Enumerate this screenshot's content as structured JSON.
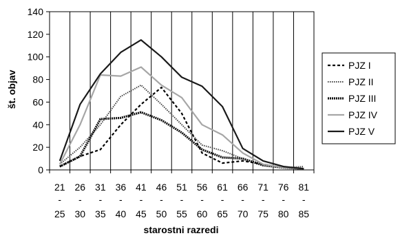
{
  "chart_data": {
    "type": "line",
    "xlabel": "starostni razredi",
    "ylabel": "št. objav",
    "ylim": [
      0,
      140
    ],
    "yticks": [
      "0",
      "20",
      "40",
      "60",
      "80",
      "100",
      "120",
      "140"
    ],
    "categories": [
      {
        "top": "21",
        "mid": "-",
        "bottom": "25"
      },
      {
        "top": "26",
        "mid": "-",
        "bottom": "30"
      },
      {
        "top": "31",
        "mid": "-",
        "bottom": "35"
      },
      {
        "top": "36",
        "mid": "-",
        "bottom": "40"
      },
      {
        "top": "41",
        "mid": "-",
        "bottom": "45"
      },
      {
        "top": "46",
        "mid": "-",
        "bottom": "50"
      },
      {
        "top": "51",
        "mid": "-",
        "bottom": "55"
      },
      {
        "top": "56",
        "mid": "-",
        "bottom": "60"
      },
      {
        "top": "61",
        "mid": "-",
        "bottom": "65"
      },
      {
        "top": "66",
        "mid": "-",
        "bottom": "70"
      },
      {
        "top": "71",
        "mid": "-",
        "bottom": "75"
      },
      {
        "top": "76",
        "mid": "-",
        "bottom": "80"
      },
      {
        "top": "81",
        "mid": "-",
        "bottom": "85"
      }
    ],
    "grid": "vertical",
    "legend_position": "right",
    "series": [
      {
        "name": "PJZ I",
        "style": "dashed",
        "color": "#000000",
        "values": [
          3,
          12,
          18,
          40,
          58,
          73,
          50,
          15,
          6,
          8,
          5,
          2,
          1
        ]
      },
      {
        "name": "PJZ II",
        "style": "dotted",
        "color": "#444444",
        "values": [
          5,
          20,
          40,
          65,
          75,
          58,
          40,
          22,
          17,
          10,
          5,
          2,
          3
        ]
      },
      {
        "name": "PJZ III",
        "style": "thick",
        "color": "#111111",
        "values": [
          3,
          12,
          45,
          46,
          51,
          44,
          33,
          18,
          11,
          10,
          4,
          2,
          1
        ]
      },
      {
        "name": "PJZ IV",
        "style": "solid",
        "color": "#a6a6a6",
        "values": [
          5,
          40,
          84,
          83,
          91,
          75,
          64,
          40,
          31,
          15,
          5,
          2,
          1
        ]
      },
      {
        "name": "PJZ V",
        "style": "solid",
        "color": "#1a1a1a",
        "values": [
          8,
          58,
          85,
          104,
          115,
          100,
          82,
          74,
          56,
          19,
          8,
          3,
          1
        ]
      }
    ]
  }
}
